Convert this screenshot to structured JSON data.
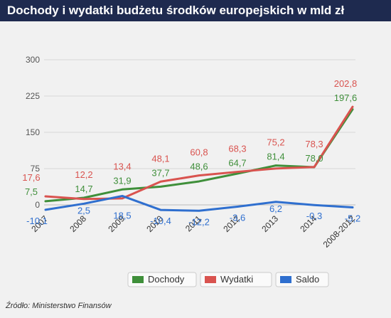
{
  "title": "Dochody i wydatki budżetu środków europejskich w mld zł",
  "source": "Źródło: Ministerstwo Finansów",
  "chart_data": {
    "type": "line",
    "categories": [
      "2007",
      "2008",
      "2009",
      "2010",
      "2011",
      "2012",
      "2013",
      "2014",
      "2008-2012"
    ],
    "y_ticks": [
      0,
      75,
      150,
      225,
      300
    ],
    "ylim": [
      -25,
      300
    ],
    "grid": true,
    "legend_position": "bottom",
    "series": [
      {
        "name": "Dochody",
        "color": "#3f8f3a",
        "values": [
          7.5,
          14.7,
          31.9,
          37.7,
          48.6,
          64.7,
          81.4,
          78.0,
          197.6
        ],
        "labels": [
          "7,5",
          "14,7",
          "31,9",
          "37,7",
          "48,6",
          "64,7",
          "81,4",
          "78,0",
          "197,6"
        ]
      },
      {
        "name": "Wydatki",
        "color": "#d9534f",
        "values": [
          17.6,
          12.2,
          13.4,
          48.1,
          60.8,
          68.3,
          75.2,
          78.3,
          202.8
        ],
        "labels": [
          "17,6",
          "12,2",
          "13,4",
          "48,1",
          "60,8",
          "68,3",
          "75,2",
          "78,3",
          "202,8"
        ]
      },
      {
        "name": "Saldo",
        "color": "#2f6fcf",
        "values": [
          -10.1,
          2.5,
          18.5,
          -10.4,
          -12.2,
          -3.6,
          6.2,
          -0.3,
          -5.2
        ],
        "labels": [
          "-10,1",
          "2,5",
          "18,5",
          "-10,4",
          "-12,2",
          "-3,6",
          "6,2",
          "-0,3",
          "-5,2"
        ]
      }
    ]
  }
}
